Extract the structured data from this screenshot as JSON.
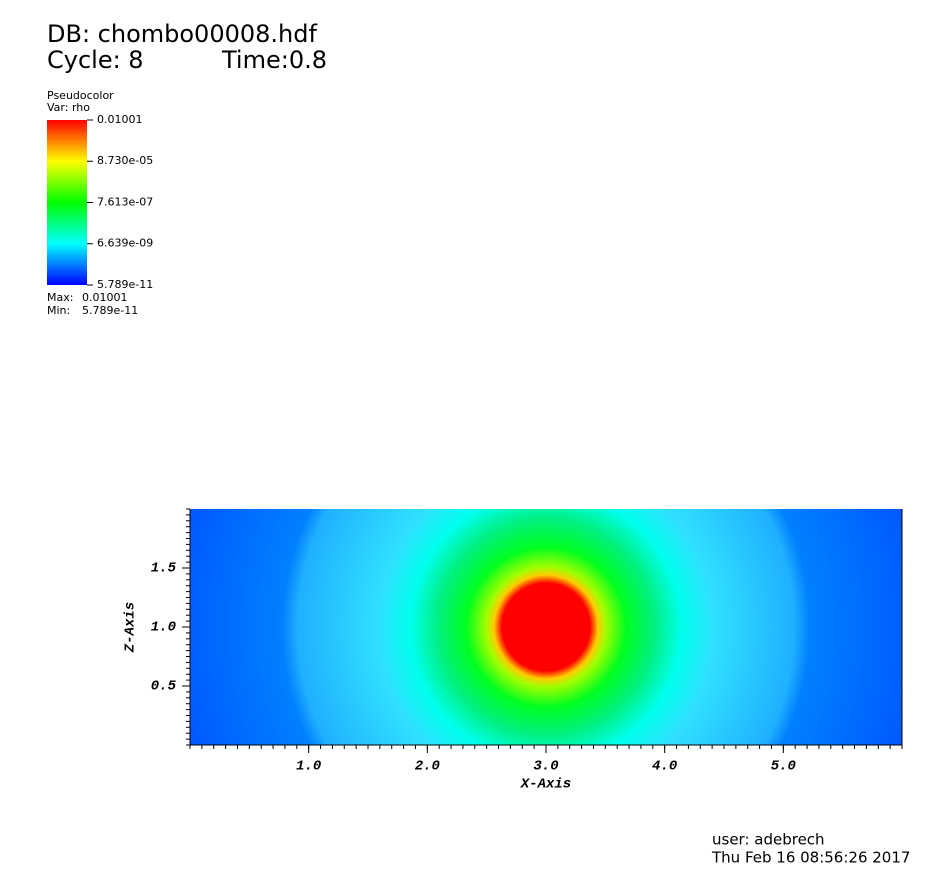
{
  "chart_data": {
    "type": "pseudocolor",
    "title": "DB: chombo00008.hdf",
    "cycle": "Cycle: 8",
    "time": "Time:0.8",
    "plot_name": "Pseudocolor",
    "variable": "Var: rho",
    "colormap": [
      "#0000ff",
      "#00ffff",
      "#00ff00",
      "#ffff00",
      "#ff0000"
    ],
    "log_scale": true,
    "legend_ticks": [
      {
        "value": 0.01001,
        "label": "0.01001"
      },
      {
        "value": 8.73e-05,
        "label": "8.730e-05"
      },
      {
        "value": 7.613e-07,
        "label": "7.613e-07"
      },
      {
        "value": 6.639e-09,
        "label": "6.639e-09"
      },
      {
        "value": 5.789e-11,
        "label": "5.789e-11"
      }
    ],
    "max_label": "Max:",
    "max": 0.01001,
    "min_label": "Min:",
    "min": {
      "value": 5.789e-11,
      "label": "5.789e-11"
    },
    "xlabel": "X-Axis",
    "ylabel": "Z-Axis",
    "xlim": [
      0,
      6
    ],
    "ylim": [
      0,
      2
    ],
    "xticks": [
      {
        "value": 1,
        "label": "1.0"
      },
      {
        "value": 2,
        "label": "2.0"
      },
      {
        "value": 3,
        "label": "3.0"
      },
      {
        "value": 4,
        "label": "4.0"
      },
      {
        "value": 5,
        "label": "5.0"
      }
    ],
    "yticks": [
      {
        "value": 0.5,
        "label": "0.5"
      },
      {
        "value": 1,
        "label": "1.0"
      },
      {
        "value": 1.5,
        "label": "1.5"
      }
    ],
    "user": "user: adebrech",
    "date": "Thu Feb 16 08:56:26 2017"
  }
}
